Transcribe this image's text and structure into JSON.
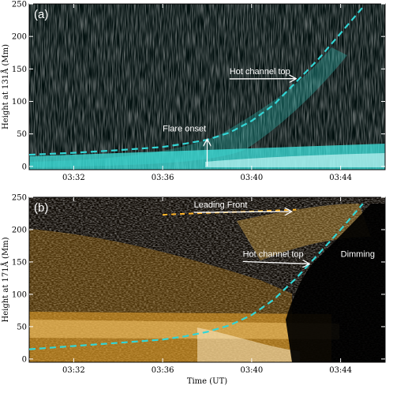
{
  "chart_data": [
    {
      "type": "heatmap",
      "panel_label": "(a)",
      "ylabel": "Height at 131Å (Mm)",
      "xlabel": "",
      "xlim": [
        "03:30",
        "03:46"
      ],
      "ylim": [
        -5,
        250
      ],
      "x_ticks": [
        "03:32",
        "03:36",
        "03:40",
        "03:44"
      ],
      "y_ticks": [
        0,
        50,
        100,
        150,
        200,
        250
      ],
      "colormap": "teal",
      "colors": {
        "background": "#02100f",
        "emission": "#3fe3de",
        "curve": "#33d6d6",
        "annotation": "#ffffff"
      },
      "series": [
        {
          "style": "dashed",
          "x": [
            "03:30",
            "03:32",
            "03:34",
            "03:36",
            "03:37",
            "03:38",
            "03:39",
            "03:40",
            "03:41",
            "03:42",
            "03:43",
            "03:44",
            "03:45"
          ],
          "y": [
            18,
            21,
            25,
            30,
            35,
            41,
            52,
            70,
            95,
            130,
            165,
            205,
            245
          ]
        }
      ],
      "annotations": [
        {
          "text": "Hot channel top",
          "x": "03:39",
          "y": 142,
          "arrow_to": [
            "03:42",
            135
          ]
        },
        {
          "text": "Flare onset",
          "x": "03:36",
          "y": 54,
          "arrow_from": [
            "03:38",
            0
          ],
          "arrow_to": [
            "03:38",
            42
          ]
        }
      ]
    },
    {
      "type": "heatmap",
      "panel_label": "(b)",
      "ylabel": "Height at 171Å (Mm)",
      "xlabel": "Time (UT)",
      "xlim": [
        "03:30",
        "03:46"
      ],
      "ylim": [
        -5,
        250
      ],
      "x_ticks": [
        "03:32",
        "03:36",
        "03:40",
        "03:44"
      ],
      "y_ticks": [
        0,
        50,
        100,
        150,
        200,
        250
      ],
      "colormap": "orange",
      "colors": {
        "background": "#0b0600",
        "emission": "#ffb428",
        "curve": "#33d6d6",
        "annotation": "#ffffff"
      },
      "series": [
        {
          "style": "dashed",
          "x": [
            "03:30",
            "03:32",
            "03:34",
            "03:36",
            "03:37",
            "03:38",
            "03:39",
            "03:40",
            "03:41",
            "03:42",
            "03:43",
            "03:44",
            "03:45"
          ],
          "y": [
            15,
            20,
            25,
            30,
            35,
            42,
            52,
            68,
            92,
            125,
            162,
            200,
            240
          ]
        },
        {
          "style": "dashed",
          "x": [
            "03:36",
            "03:38",
            "03:40",
            "03:42"
          ],
          "y": [
            223,
            226,
            228,
            231
          ]
        }
      ],
      "annotations": [
        {
          "text": "Leading Front",
          "x": "03:37.4",
          "y": 234,
          "arrow_to": [
            "03:41.8",
            228
          ]
        },
        {
          "text": "Hot channel top",
          "x": "03:39.6",
          "y": 158,
          "arrow_to": [
            "03:42.6",
            147
          ]
        },
        {
          "text": "Dimming",
          "x": "03:44",
          "y": 158
        }
      ]
    }
  ]
}
